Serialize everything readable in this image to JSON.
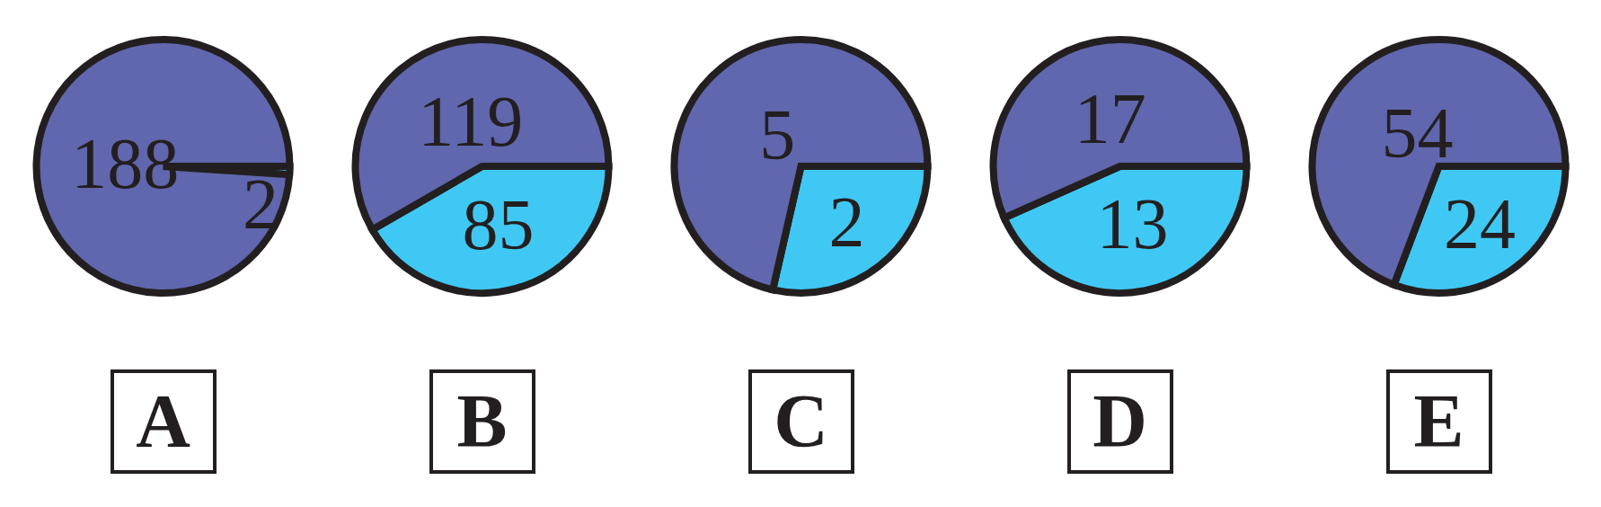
{
  "chart_data": [
    {
      "type": "pie",
      "title": "A",
      "categories": [
        null,
        null
      ],
      "values": [
        2,
        188
      ],
      "colors": [
        "#40c8f4",
        "#6067ae"
      ],
      "data_labels": true
    },
    {
      "type": "pie",
      "title": "B",
      "categories": [
        null,
        null
      ],
      "values": [
        85,
        119
      ],
      "colors": [
        "#40c8f4",
        "#6067ae"
      ],
      "data_labels": true
    },
    {
      "type": "pie",
      "title": "C",
      "categories": [
        null,
        null
      ],
      "values": [
        2,
        5
      ],
      "colors": [
        "#40c8f4",
        "#6067ae"
      ],
      "data_labels": true
    },
    {
      "type": "pie",
      "title": "D",
      "categories": [
        null,
        null
      ],
      "values": [
        13,
        17
      ],
      "colors": [
        "#40c8f4",
        "#6067ae"
      ],
      "data_labels": true
    },
    {
      "type": "pie",
      "title": "E",
      "categories": [
        null,
        null
      ],
      "values": [
        24,
        54
      ],
      "colors": [
        "#40c8f4",
        "#6067ae"
      ],
      "data_labels": true
    }
  ]
}
